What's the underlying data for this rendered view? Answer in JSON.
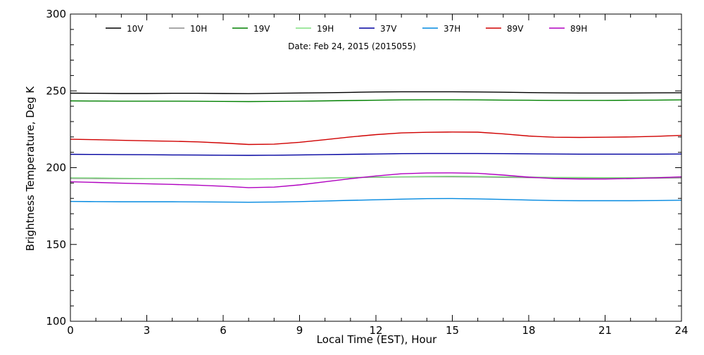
{
  "chart_data": {
    "type": "line",
    "annotation": "Date: Feb 24, 2015 (2015055)",
    "xlabel": "Local Time (EST), Hour",
    "ylabel": "Brightness Temperature, Deg K",
    "xlim": [
      0,
      24
    ],
    "ylim": [
      100,
      300
    ],
    "x_ticks": [
      0,
      3,
      6,
      9,
      12,
      15,
      18,
      21,
      24
    ],
    "y_ticks": [
      100,
      150,
      200,
      250,
      300
    ],
    "grid": false,
    "legend_position": "top",
    "x": [
      0,
      1,
      2,
      3,
      4,
      5,
      6,
      7,
      8,
      9,
      10,
      11,
      12,
      13,
      14,
      15,
      16,
      17,
      18,
      19,
      20,
      21,
      22,
      23,
      24
    ],
    "series": [
      {
        "name": "10V",
        "color": "#000000",
        "values": [
          248.5,
          248.4,
          248.3,
          248.3,
          248.4,
          248.4,
          248.3,
          248.2,
          248.4,
          248.6,
          248.8,
          249.0,
          249.3,
          249.4,
          249.4,
          249.4,
          249.3,
          249.1,
          248.9,
          248.7,
          248.6,
          248.6,
          248.6,
          248.7,
          248.8
        ]
      },
      {
        "name": "10H",
        "color": "#8c8c8c",
        "values": [
          193.0,
          192.9,
          192.8,
          192.8,
          192.8,
          192.7,
          192.6,
          192.6,
          192.7,
          192.9,
          193.2,
          193.5,
          193.7,
          193.9,
          194.0,
          194.0,
          193.9,
          193.7,
          193.5,
          193.3,
          193.2,
          193.1,
          193.1,
          193.2,
          193.3
        ]
      },
      {
        "name": "19V",
        "color": "#008000",
        "values": [
          243.5,
          243.4,
          243.3,
          243.3,
          243.3,
          243.2,
          243.1,
          243.0,
          243.1,
          243.3,
          243.5,
          243.7,
          243.9,
          244.1,
          244.2,
          244.2,
          244.1,
          244.0,
          243.9,
          243.8,
          243.8,
          243.8,
          243.9,
          244.0,
          244.1
        ]
      },
      {
        "name": "19H",
        "color": "#80e080",
        "values": [
          193.4,
          193.3,
          193.1,
          193.0,
          193.0,
          192.9,
          192.8,
          192.7,
          192.8,
          193.0,
          193.3,
          193.6,
          193.9,
          194.1,
          194.3,
          194.4,
          194.3,
          194.1,
          193.9,
          193.7,
          193.6,
          193.5,
          193.5,
          193.6,
          193.8
        ]
      },
      {
        "name": "37V",
        "color": "#0000a0",
        "values": [
          208.7,
          208.6,
          208.5,
          208.4,
          208.3,
          208.2,
          208.1,
          208.0,
          208.1,
          208.3,
          208.5,
          208.7,
          208.9,
          209.1,
          209.2,
          209.2,
          209.2,
          209.1,
          209.0,
          208.9,
          208.8,
          208.8,
          208.8,
          208.8,
          208.9
        ]
      },
      {
        "name": "37H",
        "color": "#0088e0",
        "values": [
          178.0,
          177.9,
          177.8,
          177.8,
          177.8,
          177.7,
          177.6,
          177.5,
          177.6,
          177.9,
          178.3,
          178.7,
          179.1,
          179.5,
          179.8,
          179.9,
          179.7,
          179.3,
          178.9,
          178.6,
          178.5,
          178.5,
          178.5,
          178.6,
          178.8
        ]
      },
      {
        "name": "89V",
        "color": "#d00000",
        "values": [
          218.5,
          218.2,
          217.8,
          217.5,
          217.2,
          216.8,
          216.0,
          215.1,
          215.3,
          216.5,
          218.2,
          220.0,
          221.5,
          222.6,
          223.0,
          223.2,
          223.1,
          222.0,
          220.6,
          219.8,
          219.7,
          219.8,
          220.0,
          220.4,
          221.0
        ]
      },
      {
        "name": "89H",
        "color": "#b000c0",
        "values": [
          190.8,
          190.4,
          189.9,
          189.5,
          189.1,
          188.6,
          187.9,
          187.0,
          187.3,
          188.8,
          190.8,
          192.8,
          194.6,
          196.0,
          196.5,
          196.6,
          196.3,
          195.2,
          193.8,
          192.9,
          192.6,
          192.6,
          192.9,
          193.4,
          194.0
        ]
      }
    ]
  }
}
